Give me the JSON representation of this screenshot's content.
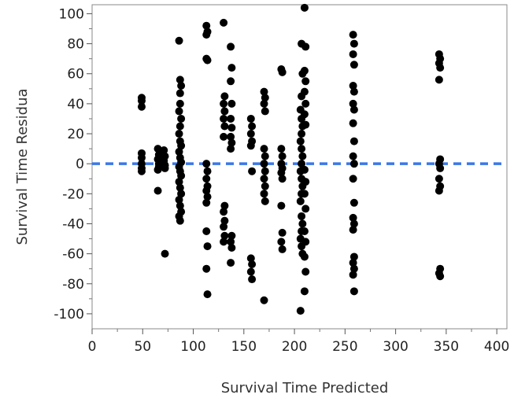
{
  "chart_data": {
    "type": "scatter",
    "xlabel": "Survival Time Predicted",
    "ylabel": "Survival Time Residua",
    "xlim": [
      0,
      410
    ],
    "ylim": [
      -110,
      106
    ],
    "xticks": [
      0,
      50,
      100,
      150,
      200,
      250,
      300,
      350,
      400
    ],
    "yticks": [
      -100,
      -80,
      -60,
      -40,
      -20,
      0,
      20,
      40,
      60,
      80,
      100
    ],
    "reference_line": {
      "y": 0,
      "style": "dashed",
      "color": "#3b78e7"
    },
    "marker_color": "#000000",
    "grid": false,
    "points": [
      [
        49,
        44
      ],
      [
        49,
        42
      ],
      [
        49,
        38
      ],
      [
        49,
        7
      ],
      [
        49,
        4
      ],
      [
        49,
        0
      ],
      [
        49,
        -3
      ],
      [
        49,
        -5
      ],
      [
        65,
        10
      ],
      [
        66,
        6
      ],
      [
        65,
        3
      ],
      [
        66,
        0
      ],
      [
        66,
        -2
      ],
      [
        65,
        -4
      ],
      [
        65,
        -18
      ],
      [
        71,
        9
      ],
      [
        72,
        5
      ],
      [
        71,
        2
      ],
      [
        72,
        -1
      ],
      [
        72,
        -3
      ],
      [
        72,
        -60
      ],
      [
        86,
        82
      ],
      [
        87,
        56
      ],
      [
        88,
        52
      ],
      [
        87,
        47
      ],
      [
        87,
        40
      ],
      [
        86,
        35
      ],
      [
        88,
        30
      ],
      [
        87,
        25
      ],
      [
        86,
        20
      ],
      [
        87,
        15
      ],
      [
        88,
        12
      ],
      [
        86,
        8
      ],
      [
        87,
        4
      ],
      [
        88,
        1
      ],
      [
        86,
        -2
      ],
      [
        87,
        -5
      ],
      [
        88,
        -8
      ],
      [
        86,
        -12
      ],
      [
        87,
        -16
      ],
      [
        88,
        -20
      ],
      [
        86,
        -24
      ],
      [
        87,
        -28
      ],
      [
        88,
        -32
      ],
      [
        86,
        -35
      ],
      [
        87,
        -38
      ],
      [
        113,
        92
      ],
      [
        114,
        88
      ],
      [
        113,
        86
      ],
      [
        113,
        70
      ],
      [
        114,
        69
      ],
      [
        113,
        0
      ],
      [
        114,
        -5
      ],
      [
        113,
        -10
      ],
      [
        114,
        -15
      ],
      [
        113,
        -18
      ],
      [
        114,
        -22
      ],
      [
        113,
        -26
      ],
      [
        113,
        -45
      ],
      [
        114,
        -55
      ],
      [
        113,
        -70
      ],
      [
        114,
        -87
      ],
      [
        130,
        94
      ],
      [
        131,
        45
      ],
      [
        130,
        40
      ],
      [
        131,
        35
      ],
      [
        130,
        30
      ],
      [
        131,
        25
      ],
      [
        130,
        18
      ],
      [
        131,
        -28
      ],
      [
        130,
        -32
      ],
      [
        131,
        -38
      ],
      [
        130,
        -42
      ],
      [
        131,
        -48
      ],
      [
        130,
        -52
      ],
      [
        137,
        78
      ],
      [
        138,
        64
      ],
      [
        137,
        55
      ],
      [
        138,
        40
      ],
      [
        137,
        30
      ],
      [
        138,
        24
      ],
      [
        137,
        18
      ],
      [
        138,
        14
      ],
      [
        137,
        10
      ],
      [
        138,
        -48
      ],
      [
        137,
        -52
      ],
      [
        138,
        -56
      ],
      [
        137,
        -66
      ],
      [
        157,
        30
      ],
      [
        158,
        25
      ],
      [
        157,
        20
      ],
      [
        158,
        15
      ],
      [
        157,
        12
      ],
      [
        158,
        -5
      ],
      [
        157,
        -63
      ],
      [
        158,
        -67
      ],
      [
        157,
        -72
      ],
      [
        158,
        -77
      ],
      [
        170,
        48
      ],
      [
        171,
        44
      ],
      [
        170,
        40
      ],
      [
        171,
        35
      ],
      [
        170,
        10
      ],
      [
        171,
        5
      ],
      [
        170,
        0
      ],
      [
        171,
        -5
      ],
      [
        170,
        -10
      ],
      [
        171,
        -15
      ],
      [
        170,
        -20
      ],
      [
        171,
        -25
      ],
      [
        170,
        -91
      ],
      [
        187,
        63
      ],
      [
        188,
        61
      ],
      [
        187,
        10
      ],
      [
        188,
        5
      ],
      [
        187,
        0
      ],
      [
        188,
        -3
      ],
      [
        187,
        -6
      ],
      [
        188,
        -10
      ],
      [
        187,
        -28
      ],
      [
        188,
        -46
      ],
      [
        187,
        -52
      ],
      [
        188,
        -57
      ],
      [
        207,
        80
      ],
      [
        208,
        60
      ],
      [
        207,
        45
      ],
      [
        206,
        36
      ],
      [
        207,
        30
      ],
      [
        208,
        25
      ],
      [
        207,
        20
      ],
      [
        206,
        15
      ],
      [
        207,
        10
      ],
      [
        208,
        5
      ],
      [
        207,
        0
      ],
      [
        206,
        -5
      ],
      [
        207,
        -10
      ],
      [
        208,
        -15
      ],
      [
        207,
        -20
      ],
      [
        206,
        -25
      ],
      [
        207,
        -35
      ],
      [
        208,
        -40
      ],
      [
        207,
        -45
      ],
      [
        206,
        -50
      ],
      [
        207,
        -55
      ],
      [
        208,
        -60
      ],
      [
        206,
        -98
      ],
      [
        210,
        104
      ],
      [
        211,
        78
      ],
      [
        210,
        62
      ],
      [
        211,
        55
      ],
      [
        210,
        48
      ],
      [
        211,
        40
      ],
      [
        210,
        33
      ],
      [
        211,
        26
      ],
      [
        210,
        -4
      ],
      [
        211,
        -12
      ],
      [
        210,
        -20
      ],
      [
        211,
        -30
      ],
      [
        210,
        -45
      ],
      [
        211,
        -52
      ],
      [
        210,
        -62
      ],
      [
        211,
        -72
      ],
      [
        210,
        -85
      ],
      [
        258,
        86
      ],
      [
        259,
        80
      ],
      [
        258,
        73
      ],
      [
        259,
        66
      ],
      [
        258,
        52
      ],
      [
        259,
        48
      ],
      [
        258,
        40
      ],
      [
        259,
        36
      ],
      [
        258,
        27
      ],
      [
        259,
        15
      ],
      [
        258,
        5
      ],
      [
        259,
        0
      ],
      [
        258,
        -10
      ],
      [
        259,
        -26
      ],
      [
        258,
        -36
      ],
      [
        259,
        -40
      ],
      [
        258,
        -44
      ],
      [
        259,
        -62
      ],
      [
        258,
        -66
      ],
      [
        259,
        -70
      ],
      [
        258,
        -74
      ],
      [
        259,
        -85
      ],
      [
        343,
        73
      ],
      [
        344,
        70
      ],
      [
        343,
        67
      ],
      [
        344,
        64
      ],
      [
        343,
        56
      ],
      [
        344,
        3
      ],
      [
        343,
        0
      ],
      [
        344,
        -3
      ],
      [
        343,
        -10
      ],
      [
        344,
        -15
      ],
      [
        343,
        -18
      ],
      [
        344,
        -70
      ],
      [
        343,
        -73
      ],
      [
        344,
        -75
      ]
    ]
  }
}
